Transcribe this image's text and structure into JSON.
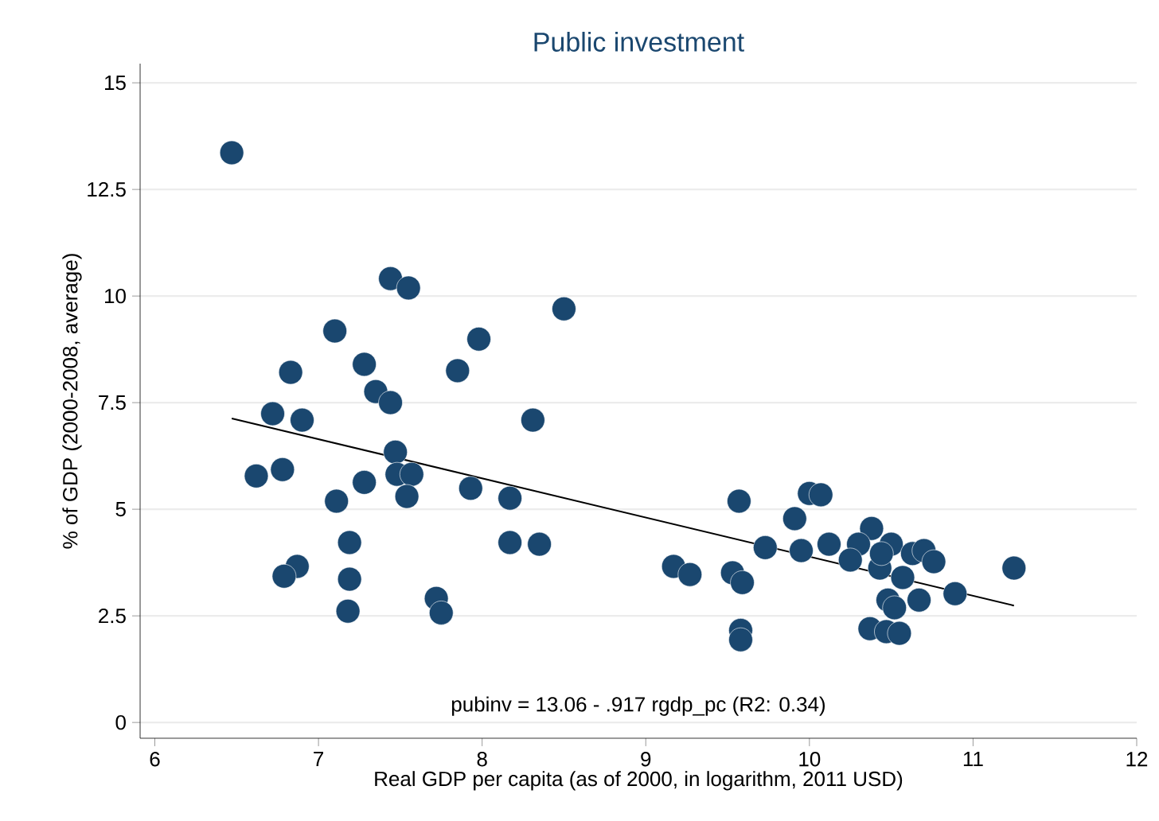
{
  "chart_data": {
    "type": "scatter",
    "title": "Public investment",
    "xlabel": "Real GDP per capita (as of 2000, in logarithm, 2011 USD)",
    "ylabel": "% of GDP (2000-2008, average)",
    "annotations": [
      "pubinv =  13.06 -  .917 rgdp_pc (R2: 0.34)"
    ],
    "xlim": [
      5.91,
      12
    ],
    "ylim": [
      -0.37,
      15.45
    ],
    "xticks": [
      6,
      7,
      8,
      9,
      10,
      11,
      12
    ],
    "yticks": [
      0,
      2.5,
      5,
      7.5,
      10,
      12.5,
      15
    ],
    "grid": "y",
    "series": [
      {
        "marker": "circle",
        "color": "#1a476f",
        "x": [
          6.47,
          7.44,
          7.55,
          8.5,
          7.1,
          7.98,
          7.28,
          6.83,
          7.85,
          7.35,
          7.44,
          6.72,
          6.9,
          8.31,
          7.47,
          6.62,
          6.78,
          7.48,
          7.57,
          7.28,
          7.93,
          8.17,
          7.54,
          7.11,
          7.19,
          8.17,
          8.35,
          6.87,
          6.79,
          7.19,
          7.72,
          7.75,
          7.18,
          9.57,
          10.0,
          10.07,
          9.91,
          10.38,
          9.73,
          9.95,
          10.12,
          10.3,
          10.5,
          10.25,
          10.43,
          10.44,
          10.63,
          10.7,
          10.76,
          11.25,
          9.17,
          9.27,
          9.53,
          9.59,
          10.57,
          10.89,
          10.48,
          10.67,
          10.52,
          9.58,
          9.58,
          10.37,
          10.47,
          10.55
        ],
        "values": [
          13.36,
          10.41,
          10.19,
          9.7,
          9.18,
          8.99,
          8.4,
          8.21,
          8.25,
          7.76,
          7.5,
          7.24,
          7.09,
          7.09,
          6.34,
          5.78,
          5.93,
          5.82,
          5.82,
          5.63,
          5.49,
          5.26,
          5.3,
          5.19,
          4.22,
          4.22,
          4.18,
          3.66,
          3.43,
          3.36,
          2.91,
          2.57,
          2.61,
          5.19,
          5.37,
          5.34,
          4.78,
          4.55,
          4.1,
          4.03,
          4.18,
          4.18,
          4.18,
          3.81,
          3.62,
          3.96,
          3.96,
          4.03,
          3.77,
          3.62,
          3.66,
          3.47,
          3.51,
          3.28,
          3.4,
          3.02,
          2.87,
          2.87,
          2.69,
          2.16,
          1.94,
          2.2,
          2.13,
          2.09
        ]
      },
      {
        "type": "line",
        "marker": "none",
        "color": "#000000",
        "x": [
          6.47,
          11.25
        ],
        "values": [
          7.13,
          2.74
        ]
      }
    ]
  }
}
